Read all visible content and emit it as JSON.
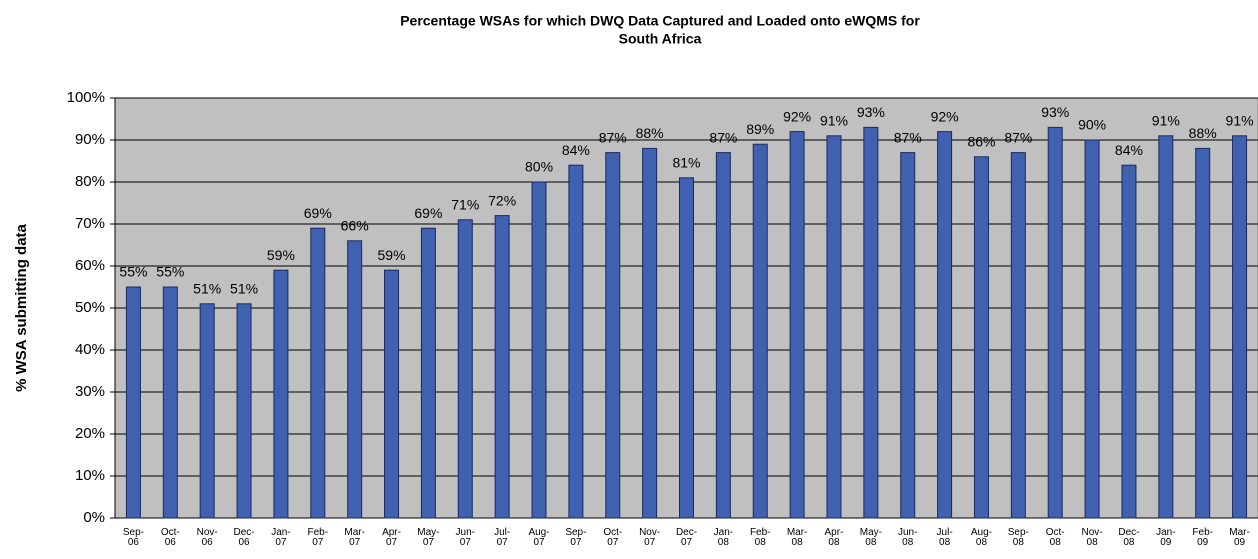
{
  "chart_data": {
    "type": "bar",
    "title": [
      "Percentage WSAs for which DWQ Data Captured and Loaded onto eWQMS for",
      "South Africa"
    ],
    "ylabel": "% WSA submitting data",
    "categories": [
      "Sep-06",
      "Oct-06",
      "Nov-06",
      "Dec-06",
      "Jan-07",
      "Feb-07",
      "Mar-07",
      "Apr-07",
      "May-07",
      "Jun-07",
      "Jul-07",
      "Aug-07",
      "Sep-07",
      "Oct-07",
      "Nov-07",
      "Dec-07",
      "Jan-08",
      "Feb-08",
      "Mar-08",
      "Apr-08",
      "May-08",
      "Jun-08",
      "Jul-08",
      "Aug-08",
      "Sep-08",
      "Oct-08",
      "Nov-08",
      "Dec-08",
      "Jan-09",
      "Feb-09",
      "Mar-09"
    ],
    "values": [
      55,
      55,
      51,
      51,
      59,
      69,
      66,
      59,
      69,
      71,
      72,
      80,
      84,
      87,
      88,
      81,
      87,
      89,
      92,
      91,
      93,
      87,
      92,
      86,
      87,
      93,
      90,
      84,
      91,
      88,
      91
    ],
    "value_labels": [
      "55%",
      "55%",
      "51%",
      "51%",
      "59%",
      "69%",
      "66%",
      "59%",
      "69%",
      "71%",
      "72%",
      "80%",
      "84%",
      "87%",
      "88%",
      "81%",
      "87%",
      "89%",
      "92%",
      "91%",
      "93%",
      "87%",
      "92%",
      "86%",
      "87%",
      "93%",
      "90%",
      "84%",
      "91%",
      "88%",
      "91%"
    ],
    "color": "#4060b0",
    "ylim": [
      0,
      100
    ],
    "yticks": [
      {
        "value": 0,
        "label": "0%"
      },
      {
        "value": 10,
        "label": "10%"
      },
      {
        "value": 20,
        "label": "20%"
      },
      {
        "value": 30,
        "label": "30%"
      },
      {
        "value": 40,
        "label": "40%"
      },
      {
        "value": 50,
        "label": "50%"
      },
      {
        "value": 60,
        "label": "60%"
      },
      {
        "value": 70,
        "label": "70%"
      },
      {
        "value": 80,
        "label": "80%"
      },
      {
        "value": 90,
        "label": "90%"
      },
      {
        "value": 100,
        "label": "100%"
      }
    ],
    "grid": true
  }
}
